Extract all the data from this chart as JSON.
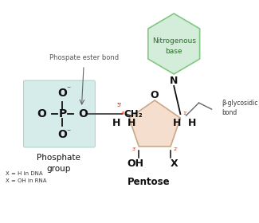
{
  "bg_color": "#ffffff",
  "phosphate_box_color": "#d5ecea",
  "phosphate_box_edge": "#a0ccc8",
  "hexagon_fill": "#d4edda",
  "hexagon_edge": "#82c882",
  "pentagon_fill": "#f5dece",
  "pentagon_edge": "#c8a888",
  "label_phosphate_ester": "Phospate ester bond",
  "label_phosphate_group": "Phosphate\ngroup",
  "label_nitrogenous": "Nitrogenous\nbase",
  "label_beta": "β-glycosidic\nbond",
  "label_pentose": "Pentose",
  "label_x_dna": "X = H in DNA",
  "label_x_rna": "X = OH in RNA",
  "superscript_minus": "⁻",
  "atom_color": "#111111",
  "red_color": "#cc2200",
  "green_text": "#2a6e2a",
  "gray_bond": "#888888"
}
